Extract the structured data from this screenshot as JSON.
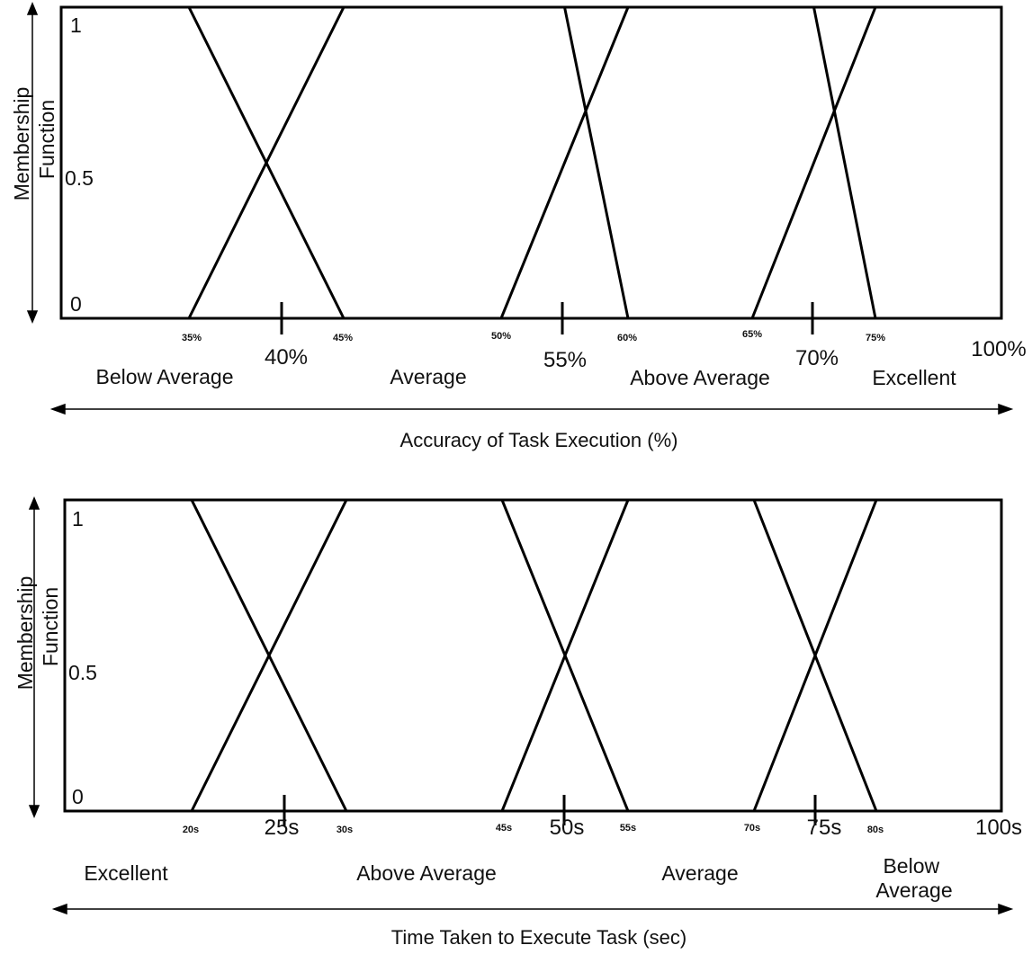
{
  "chart_data": [
    {
      "type": "line",
      "title": "",
      "ylabel_line1": "Membership",
      "ylabel_line2": "Function",
      "y_ticks": [
        "1",
        "0.5",
        "0"
      ],
      "xlabel": "Accuracy of Task Execution (%)",
      "x_ticks_major": [
        "40%",
        "55%",
        "70%"
      ],
      "x_end_label": "100%",
      "x_minor_labels": [
        "35%",
        "45%",
        "50%",
        "60%",
        "65%",
        "75%"
      ],
      "category_labels": [
        "Below Average",
        "Average",
        "Above Average",
        "Excellent"
      ],
      "series": [
        {
          "name": "Below Average",
          "x": [
            0,
            35,
            45
          ],
          "y": [
            1,
            1,
            0
          ]
        },
        {
          "name": "Average",
          "x": [
            35,
            45,
            55,
            60
          ],
          "y": [
            0,
            1,
            1,
            0
          ]
        },
        {
          "name": "Above Average",
          "x": [
            50,
            60,
            70,
            75
          ],
          "y": [
            0,
            1,
            1,
            0
          ]
        },
        {
          "name": "Excellent",
          "x": [
            65,
            75,
            100
          ],
          "y": [
            0,
            1,
            1
          ]
        }
      ]
    },
    {
      "type": "line",
      "title": "",
      "ylabel_line1": "Membership",
      "ylabel_line2": "Function",
      "y_ticks": [
        "1",
        "0.5",
        "0"
      ],
      "xlabel": "Time Taken to Execute Task (sec)",
      "x_ticks_major": [
        "25s",
        "50s",
        "75s"
      ],
      "x_end_label": "100s",
      "x_minor_labels": [
        "20s",
        "30s",
        "45s",
        "55s",
        "70s",
        "80s"
      ],
      "category_labels": [
        "Excellent",
        "Above Average",
        "Average",
        "Below Average"
      ],
      "series": [
        {
          "name": "Excellent",
          "x": [
            0,
            20,
            30
          ],
          "y": [
            1,
            1,
            0
          ]
        },
        {
          "name": "Above Average",
          "x": [
            20,
            30,
            45,
            55
          ],
          "y": [
            0,
            1,
            1,
            0
          ]
        },
        {
          "name": "Average",
          "x": [
            45,
            55,
            70,
            80
          ],
          "y": [
            0,
            1,
            1,
            0
          ]
        },
        {
          "name": "Below Average",
          "x": [
            70,
            80,
            100
          ],
          "y": [
            0,
            1,
            1
          ]
        }
      ]
    }
  ]
}
